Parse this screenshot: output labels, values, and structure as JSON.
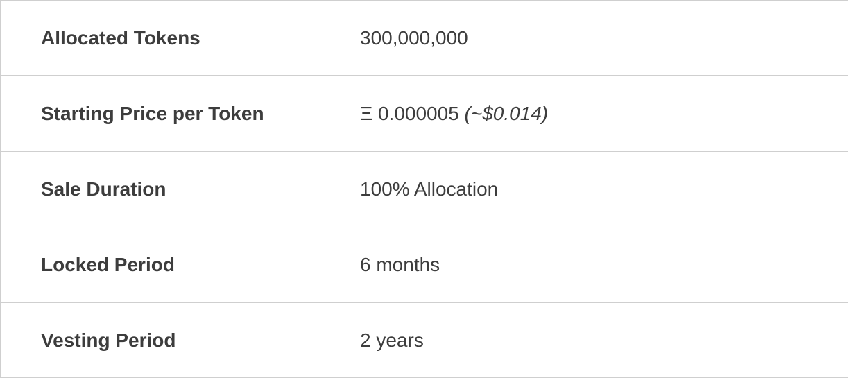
{
  "rows": [
    {
      "label": "Allocated Tokens",
      "value": "300,000,000",
      "note": ""
    },
    {
      "label": "Starting Price per Token",
      "value": "Ξ 0.000005",
      "note": "(~$0.014)"
    },
    {
      "label": "Sale Duration",
      "value": "100% Allocation",
      "note": ""
    },
    {
      "label": "Locked Period",
      "value": "6 months",
      "note": ""
    },
    {
      "label": "Vesting Period",
      "value": "2 years",
      "note": ""
    }
  ],
  "colors": {
    "border": "#cfcfcf",
    "text": "#3d3d3d",
    "background": "#ffffff"
  }
}
